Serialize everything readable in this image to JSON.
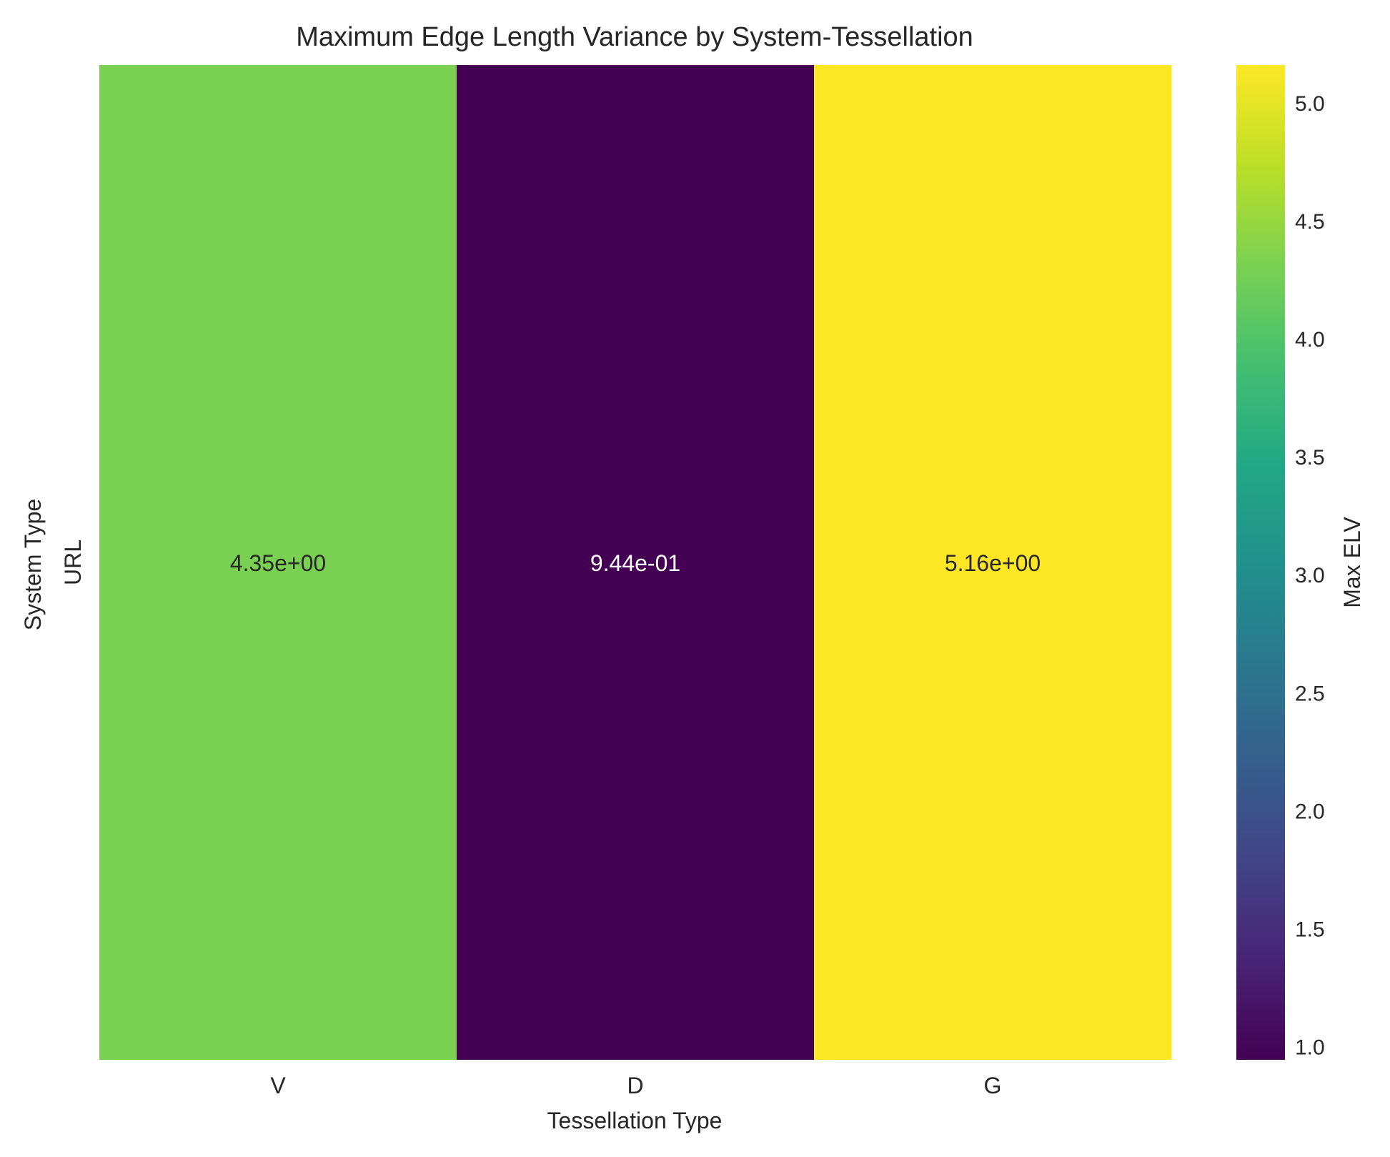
{
  "chart_data": {
    "type": "heatmap",
    "title": "Maximum Edge Length Variance by System-Tessellation",
    "xlabel": "Tessellation Type",
    "ylabel": "System Type",
    "x_categories": [
      "V",
      "D",
      "G"
    ],
    "y_categories": [
      "URL"
    ],
    "values": [
      [
        4.35,
        0.944,
        5.16
      ]
    ],
    "cell_labels": [
      [
        "4.35e+00",
        "9.44e-01",
        "5.16e+00"
      ]
    ],
    "colormap": "viridis",
    "colorbar": {
      "label": "Max ELV",
      "range": [
        0.944,
        5.16
      ],
      "ticks": [
        "1.0",
        "1.5",
        "2.0",
        "2.5",
        "3.0",
        "3.5",
        "4.0",
        "4.5",
        "5.0"
      ],
      "tick_values": [
        1.0,
        1.5,
        2.0,
        2.5,
        3.0,
        3.5,
        4.0,
        4.5,
        5.0
      ]
    },
    "cell_colors": [
      "#7ad151",
      "#440154",
      "#fde725"
    ],
    "grid": false
  }
}
